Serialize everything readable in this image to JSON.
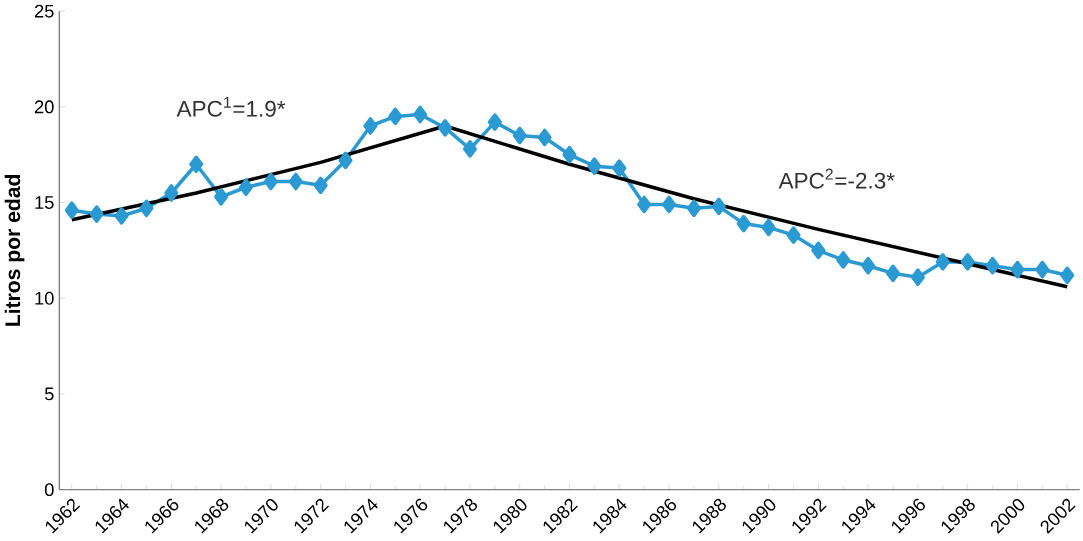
{
  "chart_data": {
    "type": "line",
    "ylabel": "Litros por edad",
    "x": [
      1962,
      1963,
      1964,
      1965,
      1966,
      1967,
      1968,
      1969,
      1970,
      1971,
      1972,
      1973,
      1974,
      1975,
      1976,
      1977,
      1978,
      1979,
      1980,
      1981,
      1982,
      1983,
      1984,
      1985,
      1986,
      1987,
      1988,
      1989,
      1990,
      1991,
      1992,
      1993,
      1994,
      1995,
      1996,
      1997,
      1998,
      1999,
      2000,
      2001,
      2002
    ],
    "series": [
      {
        "color": "#2b9ad2",
        "marker": "diamond",
        "values": [
          14.6,
          14.4,
          14.3,
          14.7,
          15.5,
          17.0,
          15.3,
          15.8,
          16.1,
          16.1,
          15.9,
          17.2,
          19.0,
          19.5,
          19.6,
          18.9,
          17.8,
          19.2,
          18.5,
          18.4,
          17.5,
          16.9,
          16.8,
          14.9,
          14.9,
          14.7,
          14.8,
          13.9,
          13.7,
          13.3,
          12.5,
          12.0,
          11.7,
          11.3,
          11.1,
          11.9,
          11.9,
          11.7,
          11.5,
          11.5,
          11.2
        ]
      },
      {
        "color": "#000000",
        "marker": "none",
        "x": [
          1962,
          1967,
          1972,
          1977,
          1982,
          1987,
          1992,
          1997,
          2002
        ],
        "values": [
          14.1,
          15.5,
          17.1,
          19.0,
          17.0,
          15.2,
          13.6,
          12.1,
          10.6
        ]
      }
    ],
    "xlim": [
      1961.5,
      2002.5
    ],
    "xticks": [
      1962,
      1964,
      1966,
      1968,
      1970,
      1972,
      1974,
      1976,
      1978,
      1980,
      1982,
      1984,
      1986,
      1988,
      1990,
      1992,
      1994,
      1996,
      1998,
      2000,
      2002
    ],
    "ylim": [
      0,
      25
    ],
    "yticks": [
      0,
      5,
      10,
      15,
      20,
      25
    ],
    "grid": false,
    "annotations": [
      "APC$^{1}$=1.9*",
      "APC$^{2}$=-2.3*"
    ]
  }
}
